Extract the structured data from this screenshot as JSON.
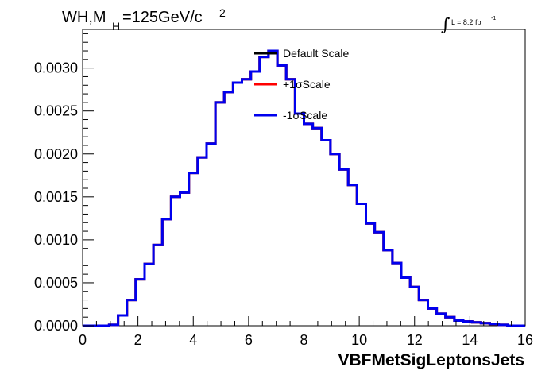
{
  "chart_data": {
    "type": "line",
    "title": {
      "prefix": "WH,M",
      "subscript": "H",
      "suffix": "=125GeV/c",
      "superscript": "2"
    },
    "lumi": {
      "integral": "∫",
      "text": "L = 8.2 fb",
      "superscript": "-1"
    },
    "xlabel": "VBFMetSigLeptonsJets",
    "ylabel": "",
    "xlim": [
      0,
      16
    ],
    "ylim": [
      0,
      0.00345
    ],
    "xticks": [
      "0",
      "2",
      "4",
      "6",
      "8",
      "10",
      "12",
      "14",
      "16"
    ],
    "yticks": [
      "0.0000",
      "0.0005",
      "0.0010",
      "0.0015",
      "0.0020",
      "0.0025",
      "0.0030"
    ],
    "grid": false,
    "legend_position": "top-center",
    "bin_width": 0.32,
    "x_start": 0,
    "series": [
      {
        "name": "Default Scale",
        "color": "#000000",
        "values": [
          0,
          0,
          0,
          1e-05,
          0.00012,
          0.0003,
          0.00054,
          0.00072,
          0.00094,
          0.00124,
          0.0015,
          0.00155,
          0.00178,
          0.00196,
          0.00212,
          0.0026,
          0.00272,
          0.00283,
          0.00287,
          0.00296,
          0.00313,
          0.0032,
          0.00303,
          0.00287,
          0.00247,
          0.00235,
          0.0023,
          0.00216,
          0.002,
          0.00182,
          0.00164,
          0.00142,
          0.00119,
          0.00109,
          0.00088,
          0.00073,
          0.00056,
          0.00045,
          0.0003,
          0.0002,
          0.00014,
          0.0001,
          6e-05,
          5e-05,
          4e-05,
          3e-05,
          2e-05,
          1e-05,
          0,
          0
        ]
      },
      {
        "name": "+1σScale",
        "color": "#ff0000",
        "values": [
          0,
          0,
          0,
          1e-05,
          0.00012,
          0.0003,
          0.00054,
          0.00072,
          0.00094,
          0.00124,
          0.0015,
          0.00155,
          0.00178,
          0.00196,
          0.00212,
          0.0026,
          0.00272,
          0.00283,
          0.00287,
          0.00296,
          0.00313,
          0.0032,
          0.00303,
          0.00287,
          0.00247,
          0.00235,
          0.0023,
          0.00216,
          0.002,
          0.00182,
          0.00164,
          0.00142,
          0.00119,
          0.00109,
          0.00088,
          0.00073,
          0.00056,
          0.00045,
          0.0003,
          0.0002,
          0.00014,
          0.0001,
          6e-05,
          5e-05,
          4e-05,
          3e-05,
          2e-05,
          1e-05,
          0,
          0
        ]
      },
      {
        "name": "-1σScale",
        "color": "#0000ee",
        "values": [
          0,
          0,
          0,
          1e-05,
          0.00012,
          0.0003,
          0.00054,
          0.00072,
          0.00094,
          0.00124,
          0.0015,
          0.00155,
          0.00178,
          0.00196,
          0.00212,
          0.0026,
          0.00272,
          0.00283,
          0.00287,
          0.00296,
          0.00313,
          0.0032,
          0.00303,
          0.00287,
          0.00247,
          0.00235,
          0.0023,
          0.00216,
          0.002,
          0.00182,
          0.00164,
          0.00142,
          0.00119,
          0.00109,
          0.00088,
          0.00073,
          0.00056,
          0.00045,
          0.0003,
          0.0002,
          0.00014,
          0.0001,
          6e-05,
          5e-05,
          4e-05,
          3e-05,
          2e-05,
          1e-05,
          0,
          0
        ]
      }
    ]
  }
}
